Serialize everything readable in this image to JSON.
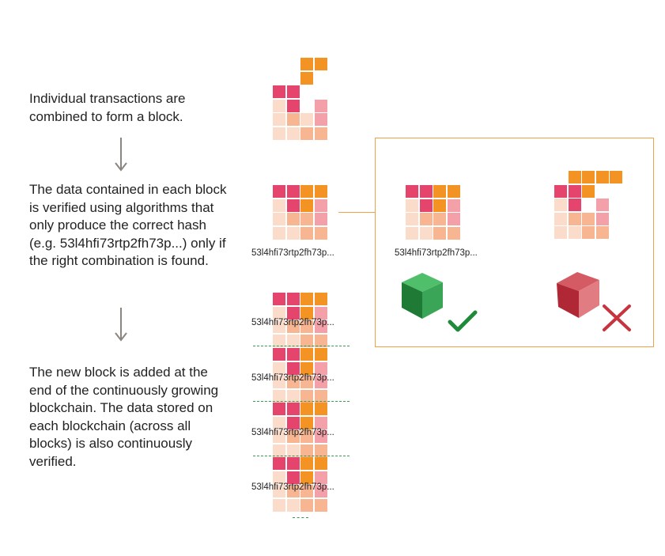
{
  "steps": [
    {
      "text": "Individual transactions are combined to form a block."
    },
    {
      "text": "The data contained in each block is verified using algorithms that only produce the correct hash (e.g. 53l4hfi73rtp2fh73p...) only if the right combination is found."
    },
    {
      "text": "The new block is added at the end of the continuously growing blockchain. The data stored on each blockchain (across all blocks) is also continuously verified."
    }
  ],
  "hash_label": "53l4hfi73rtp2fh73p...",
  "colors": {
    "magenta": "#e5456c",
    "orange": "#f39323",
    "pink": "#f4a0a9",
    "peach": "#f7b592",
    "pale": "#fbdccb",
    "box_border": "#f3a146",
    "valid_cube": "#2e9a4e",
    "invalid_cube": "#c8343d",
    "check": "#1f8a3a",
    "cross": "#c8343d"
  },
  "icons": [
    "arrow-down-icon",
    "green-cube-icon",
    "check-icon",
    "red-cube-icon",
    "cross-icon"
  ]
}
